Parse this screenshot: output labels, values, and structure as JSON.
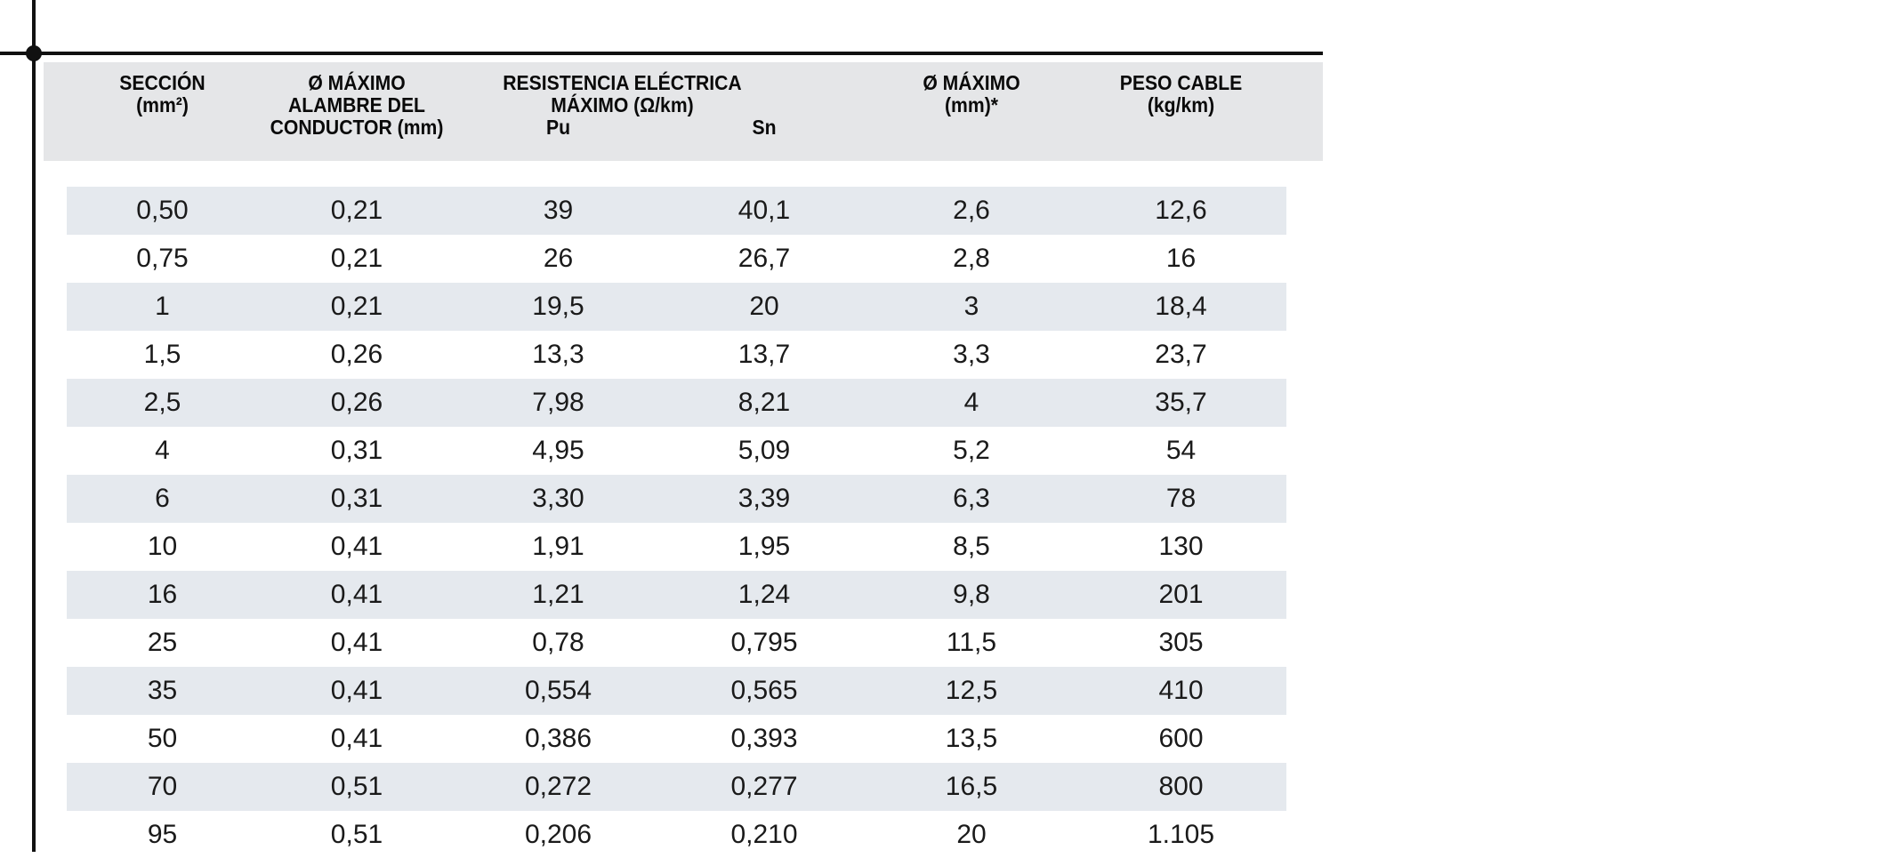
{
  "table": {
    "header": {
      "seccion": [
        "SECCIÓN",
        "(mm²)"
      ],
      "alambre": [
        "Ø MÁXIMO",
        "ALAMBRE DEL",
        "CONDUCTOR (mm)"
      ],
      "resistencia": [
        "RESISTENCIA ELÉCTRICA",
        "MÁXIMO (Ω/km)"
      ],
      "sub": [
        "Pu",
        "Sn"
      ],
      "diametro": [
        "Ø MÁXIMO",
        "(mm)*"
      ],
      "peso": [
        "PESO CABLE",
        "(kg/km)"
      ]
    },
    "rows": [
      [
        "0,50",
        "0,21",
        "39",
        "40,1",
        "2,6",
        "12,6"
      ],
      [
        "0,75",
        "0,21",
        "26",
        "26,7",
        "2,8",
        "16"
      ],
      [
        "1",
        "0,21",
        "19,5",
        "20",
        "3",
        "18,4"
      ],
      [
        "1,5",
        "0,26",
        "13,3",
        "13,7",
        "3,3",
        "23,7"
      ],
      [
        "2,5",
        "0,26",
        "7,98",
        "8,21",
        "4",
        "35,7"
      ],
      [
        "4",
        "0,31",
        "4,95",
        "5,09",
        "5,2",
        "54"
      ],
      [
        "6",
        "0,31",
        "3,30",
        "3,39",
        "6,3",
        "78"
      ],
      [
        "10",
        "0,41",
        "1,91",
        "1,95",
        "8,5",
        "130"
      ],
      [
        "16",
        "0,41",
        "1,21",
        "1,24",
        "9,8",
        "201"
      ],
      [
        "25",
        "0,41",
        "0,78",
        "0,795",
        "11,5",
        "305"
      ],
      [
        "35",
        "0,41",
        "0,554",
        "0,565",
        "12,5",
        "410"
      ],
      [
        "50",
        "0,41",
        "0,386",
        "0,393",
        "13,5",
        "600"
      ],
      [
        "70",
        "0,51",
        "0,272",
        "0,277",
        "16,5",
        "800"
      ],
      [
        "95",
        "0,51",
        "0,206",
        "0,210",
        "20",
        "1.105"
      ]
    ]
  },
  "colors": {
    "header_band": "#e5e6e8",
    "row_stripe": "#e5e9ee",
    "crop_mark": "#111111",
    "text": "#1a1a1a"
  }
}
